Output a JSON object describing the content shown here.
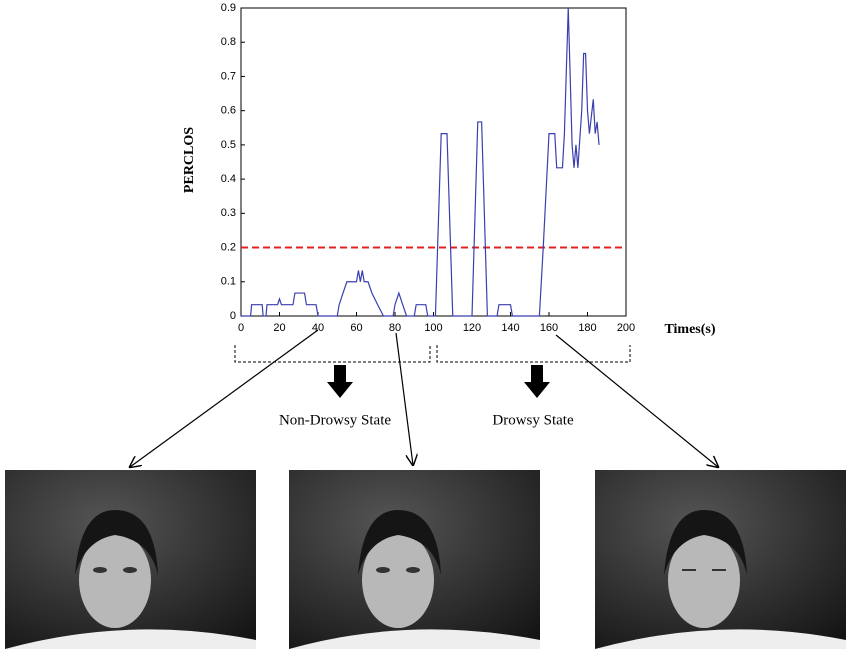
{
  "chart_data": {
    "type": "line",
    "xlabel": "Times(s)",
    "ylabel": "PERCLOS",
    "xlim": [
      0,
      200
    ],
    "ylim": [
      0,
      0.9
    ],
    "xticks": [
      0,
      20,
      40,
      60,
      80,
      100,
      120,
      140,
      160,
      180,
      200
    ],
    "yticks": [
      0,
      0.1,
      0.2,
      0.3,
      0.4,
      0.5,
      0.6,
      0.7,
      0.8,
      0.9
    ],
    "threshold": {
      "value": 0.2,
      "color": "#e32020"
    },
    "series": [
      {
        "color": "#3a3fb0",
        "x": [
          0,
          5,
          5.5,
          11,
          11.5,
          13,
          13.5,
          19,
          20,
          21,
          27,
          28,
          33,
          34,
          39,
          40,
          50,
          51,
          53,
          55,
          60,
          61,
          62,
          63,
          64,
          66,
          68,
          71,
          74,
          79,
          80,
          82,
          84,
          86,
          90,
          91,
          96,
          97,
          101,
          104,
          107,
          110,
          120,
          123,
          125,
          128,
          133,
          134,
          140,
          141,
          155,
          157,
          160,
          163,
          164,
          167,
          168,
          170,
          172,
          173,
          174,
          175,
          177,
          178,
          179,
          180,
          181,
          183,
          184,
          185,
          186
        ],
        "values": [
          0,
          0,
          0.033,
          0.033,
          0,
          0,
          0.033,
          0.033,
          0.05,
          0.033,
          0.033,
          0.067,
          0.067,
          0.033,
          0.033,
          0,
          0,
          0.033,
          0.067,
          0.1,
          0.1,
          0.133,
          0.1,
          0.133,
          0.1,
          0.1,
          0.067,
          0.033,
          0,
          0,
          0.033,
          0.067,
          0.033,
          0,
          0,
          0.033,
          0.033,
          0,
          0,
          0.533,
          0.533,
          0,
          0,
          0.567,
          0.567,
          0,
          0,
          0.033,
          0.033,
          0,
          0,
          0.2,
          0.533,
          0.533,
          0.433,
          0.433,
          0.533,
          0.9,
          0.5,
          0.433,
          0.5,
          0.433,
          0.6,
          0.767,
          0.767,
          0.6,
          0.533,
          0.633,
          0.533,
          0.567,
          0.5
        ]
      }
    ],
    "annotations": [
      "Non-Drowsy State",
      "Drowsy State"
    ]
  }
}
